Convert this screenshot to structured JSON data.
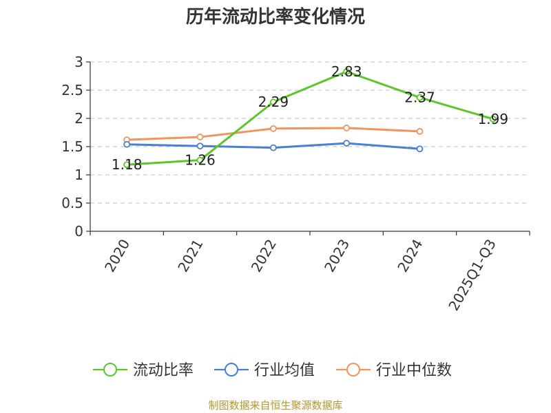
{
  "chart_data": {
    "type": "line",
    "title": "历年流动比率变化情况",
    "categories": [
      "2020",
      "2021",
      "2022",
      "2023",
      "2024",
      "2025Q1-Q3"
    ],
    "ylim": [
      0,
      3
    ],
    "yticks": [
      "0",
      "0.5",
      "1",
      "1.5",
      "2",
      "2.5",
      "3"
    ],
    "grid": true,
    "legend_position": "bottom",
    "series": [
      {
        "name": "流动比率",
        "color": "#5cc52a",
        "values": [
          1.18,
          1.26,
          2.29,
          2.83,
          2.37,
          1.99
        ],
        "labels": [
          "1.18",
          "1.26",
          "2.29",
          "2.83",
          "2.37",
          "1.99"
        ]
      },
      {
        "name": "行业均值",
        "color": "#4a7fd6",
        "values": [
          1.54,
          1.51,
          1.48,
          1.56,
          1.46,
          null
        ]
      },
      {
        "name": "行业中位数",
        "color": "#f4935a",
        "values": [
          1.62,
          1.67,
          1.82,
          1.83,
          1.77,
          null
        ]
      }
    ]
  },
  "source": "制图数据来自恒生聚源数据库"
}
